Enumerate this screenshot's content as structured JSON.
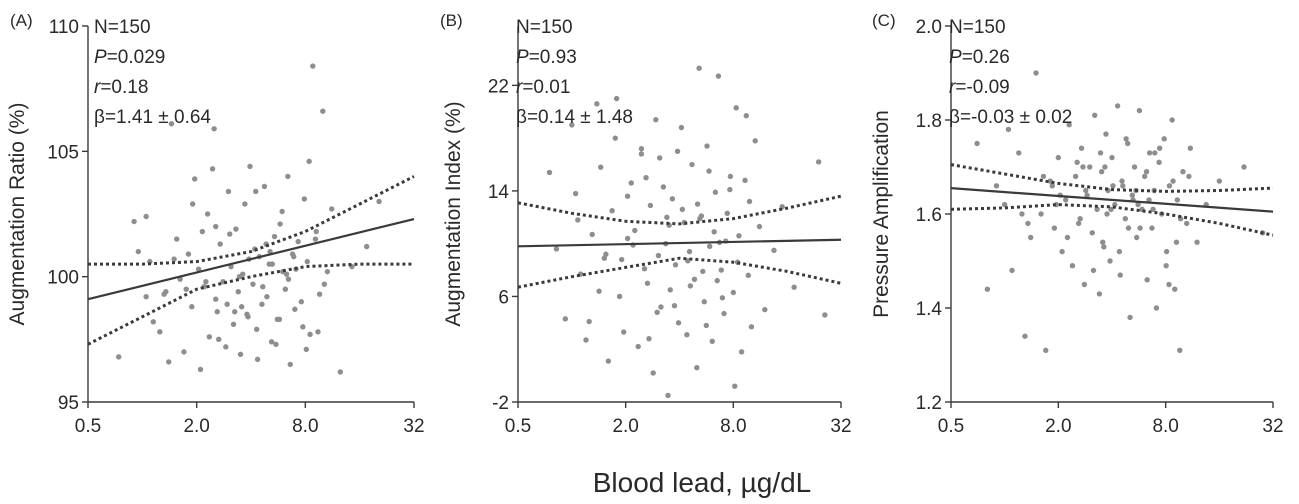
{
  "figure": {
    "shared_xlabel": "Blood lead, µg/dL"
  },
  "chart_data": [
    {
      "type": "scatter",
      "panel": "(A)",
      "ylabel": "Augmentation Ratio (%)",
      "x_scale": "log2",
      "xticks": [
        0.5,
        2.0,
        8.0,
        32
      ],
      "xtick_labels": [
        "0.5",
        "2.0",
        "8.0",
        "32"
      ],
      "xlim": [
        0.5,
        32
      ],
      "yticks": [
        95,
        100,
        105,
        110
      ],
      "ytick_labels": [
        "95",
        "100",
        "105",
        "110"
      ],
      "ylim": [
        95,
        110
      ],
      "stats": [
        {
          "sym": "N",
          "rest": "=150"
        },
        {
          "sym": "P",
          "rest": "=0.029"
        },
        {
          "sym": "r",
          "rest": "=0.18"
        },
        {
          "sym": "β",
          "rest": "=1.41 ± 0.64"
        }
      ],
      "fit": {
        "x": [
          0.5,
          32
        ],
        "y": [
          99.1,
          102.3
        ]
      },
      "ci_upper": {
        "x": [
          0.5,
          1.0,
          2.0,
          4.0,
          8.0,
          16.0,
          32
        ],
        "y": [
          100.5,
          100.5,
          100.6,
          101.0,
          101.8,
          102.9,
          104.0
        ]
      },
      "ci_lower": {
        "x": [
          0.5,
          1.0,
          2.0,
          4.0,
          8.0,
          16.0,
          32
        ],
        "y": [
          97.3,
          98.4,
          99.5,
          100.0,
          100.4,
          100.5,
          100.5
        ]
      },
      "points": {
        "x": [
          0.74,
          0.95,
          1.05,
          1.1,
          1.25,
          1.32,
          1.4,
          1.45,
          1.55,
          1.62,
          1.7,
          1.8,
          1.88,
          1.95,
          2.05,
          2.1,
          2.2,
          2.3,
          2.35,
          2.45,
          2.55,
          2.6,
          2.7,
          2.8,
          2.9,
          3.0,
          3.1,
          3.2,
          3.3,
          3.4,
          3.5,
          3.6,
          3.7,
          3.8,
          3.95,
          4.1,
          4.2,
          4.3,
          4.45,
          4.6,
          4.75,
          4.9,
          5.05,
          5.2,
          5.4,
          5.6,
          5.8,
          6.0,
          6.2,
          6.4,
          6.6,
          6.8,
          7.0,
          7.3,
          7.6,
          7.9,
          8.2,
          8.5,
          8.8,
          9.2,
          9.6,
          10.0,
          10.6,
          11.2,
          12.5,
          14.5,
          17.5,
          20.5,
          1.15,
          1.5,
          1.9,
          2.25,
          2.65,
          3.05,
          3.45,
          3.85,
          4.25,
          4.65,
          5.1,
          5.5,
          5.95,
          6.45,
          7.1,
          7.75,
          8.4,
          9.1,
          10.2,
          2.5,
          3.25,
          4.35,
          6.9,
          1.05,
          2.15,
          3.55,
          5.25,
          8.1,
          0.9,
          1.75,
          2.95,
          4.85,
          6.3,
          9.4,
          1.35,
          2.55,
          3.9,
          5.75
        ],
        "y": [
          96.8,
          101.0,
          102.4,
          100.6,
          97.8,
          99.3,
          96.6,
          106.1,
          101.5,
          99.9,
          97.0,
          100.9,
          98.8,
          103.9,
          100.3,
          96.3,
          99.6,
          102.5,
          97.6,
          104.3,
          99.1,
          98.6,
          101.3,
          99.8,
          97.2,
          103.4,
          100.4,
          98.1,
          101.9,
          99.4,
          96.9,
          100.1,
          102.9,
          98.5,
          104.4,
          99.7,
          101.1,
          97.9,
          100.8,
          98.9,
          103.6,
          99.2,
          100.5,
          97.4,
          101.6,
          98.3,
          102.1,
          100.2,
          99.5,
          104.0,
          96.5,
          100.9,
          98.7,
          101.4,
          99.0,
          103.1,
          100.6,
          97.7,
          108.4,
          101.8,
          99.3,
          106.6,
          100.2,
          102.7,
          96.2,
          100.4,
          101.2,
          103.0,
          98.2,
          100.7,
          102.9,
          99.8,
          97.5,
          101.7,
          100.0,
          98.4,
          103.4,
          99.6,
          101.0,
          97.3,
          102.6,
          99.9,
          100.3,
          98.0,
          104.6,
          101.5,
          99.7,
          105.9,
          98.6,
          96.7,
          100.8,
          99.2,
          101.8,
          98.8,
          100.5,
          97.1,
          102.2,
          99.5,
          98.9,
          101.3,
          100.1,
          97.8,
          99.4,
          102.0,
          100.7,
          98.3
        ]
      }
    },
    {
      "type": "scatter",
      "panel": "(B)",
      "ylabel": "Augmentation Index (%)",
      "x_scale": "log2",
      "xticks": [
        0.5,
        2.0,
        8.0,
        32
      ],
      "xtick_labels": [
        "0.5",
        "2.0",
        "8.0",
        "32"
      ],
      "xlim": [
        0.5,
        32
      ],
      "yticks": [
        -2,
        6,
        14,
        22
      ],
      "ytick_labels": [
        "-2",
        "6",
        "14",
        "22"
      ],
      "ylim": [
        -2,
        26.5
      ],
      "stats": [
        {
          "sym": "N",
          "rest": "=150"
        },
        {
          "sym": "P",
          "rest": "=0.93"
        },
        {
          "sym": "r",
          "rest": "=0.01"
        },
        {
          "sym": "β",
          "rest": "=0.14 ± 1.48"
        }
      ],
      "fit": {
        "x": [
          0.5,
          32
        ],
        "y": [
          9.8,
          10.3
        ]
      },
      "ci_upper": {
        "x": [
          0.5,
          1.0,
          2.0,
          4.0,
          8.0,
          16.0,
          32
        ],
        "y": [
          13.1,
          12.3,
          11.7,
          11.5,
          11.9,
          12.7,
          13.6
        ]
      },
      "ci_lower": {
        "x": [
          0.5,
          1.0,
          2.0,
          4.0,
          8.0,
          16.0,
          32
        ],
        "y": [
          6.7,
          7.5,
          8.2,
          8.9,
          8.6,
          7.9,
          7.0
        ]
      },
      "points": {
        "x": [
          0.75,
          0.82,
          0.92,
          1.0,
          1.05,
          1.12,
          1.2,
          1.3,
          1.38,
          1.45,
          1.52,
          1.6,
          1.68,
          1.75,
          1.85,
          1.95,
          2.05,
          2.15,
          2.25,
          2.35,
          2.45,
          2.55,
          2.65,
          2.75,
          2.85,
          2.95,
          3.05,
          3.15,
          3.25,
          3.35,
          3.45,
          3.55,
          3.65,
          3.8,
          3.95,
          4.1,
          4.25,
          4.4,
          4.55,
          4.7,
          4.85,
          5.0,
          5.15,
          5.3,
          5.5,
          5.7,
          5.9,
          6.1,
          6.35,
          6.6,
          6.85,
          7.1,
          7.4,
          7.7,
          8.0,
          8.3,
          8.6,
          8.9,
          9.3,
          9.7,
          10.1,
          10.6,
          11.2,
          12.0,
          13.5,
          15.0,
          17.5,
          24.0,
          26.0,
          1.08,
          1.42,
          1.78,
          2.2,
          2.6,
          3.0,
          3.4,
          3.9,
          4.45,
          5.05,
          5.65,
          6.25,
          6.95,
          7.65,
          8.45,
          9.45,
          2.05,
          2.7,
          3.5,
          4.6,
          5.85,
          7.25,
          1.25,
          1.9,
          3.1,
          4.15,
          5.4,
          6.7,
          8.15,
          9.85,
          1.55,
          2.45,
          3.75,
          5.2,
          6.5
        ],
        "y": [
          15.4,
          9.6,
          4.3,
          19.0,
          13.8,
          7.7,
          2.7,
          10.7,
          20.6,
          15.8,
          8.9,
          1.1,
          12.5,
          18.0,
          6.0,
          3.3,
          10.4,
          14.6,
          11.0,
          2.2,
          16.8,
          8.1,
          7.0,
          12.9,
          0.2,
          19.4,
          9.1,
          5.2,
          14.3,
          10.0,
          -1.5,
          6.5,
          13.4,
          8.4,
          4.0,
          18.8,
          11.6,
          3.1,
          9.4,
          16.0,
          7.3,
          0.6,
          23.3,
          12.1,
          5.6,
          17.4,
          9.8,
          2.6,
          13.9,
          22.7,
          8.0,
          4.7,
          12.3,
          15.1,
          6.3,
          20.3,
          10.6,
          1.8,
          14.8,
          7.6,
          3.7,
          17.8,
          11.3,
          5.0,
          9.5,
          12.8,
          6.7,
          16.2,
          4.6,
          11.8,
          6.4,
          21.0,
          9.9,
          15.0,
          4.8,
          12.0,
          17.0,
          8.7,
          13.0,
          3.8,
          10.9,
          5.9,
          14.1,
          8.6,
          19.7,
          13.6,
          2.8,
          11.4,
          6.8,
          15.5,
          10.2,
          4.1,
          8.8,
          16.5,
          12.6,
          7.9,
          10.1,
          -0.8,
          13.2,
          9.2,
          17.2,
          5.3,
          11.9,
          7.2
        ]
      }
    },
    {
      "type": "scatter",
      "panel": "(C)",
      "ylabel": "Pressure Amplification",
      "x_scale": "log2",
      "xticks": [
        0.5,
        2.0,
        8.0,
        32
      ],
      "xtick_labels": [
        "0.5",
        "2.0",
        "8.0",
        "32"
      ],
      "xlim": [
        0.5,
        32
      ],
      "yticks": [
        1.2,
        1.4,
        1.6,
        1.8,
        2.0
      ],
      "ytick_labels": [
        "1.2",
        "1.4",
        "1.6",
        "1.8",
        "2.0"
      ],
      "ylim": [
        1.2,
        2.0
      ],
      "stats": [
        {
          "sym": "N",
          "rest": "=150"
        },
        {
          "sym": "P",
          "rest": "=0.26"
        },
        {
          "sym": "r",
          "rest": "=-0.09"
        },
        {
          "sym": "β",
          "rest": "=-0.03 ± 0.02"
        }
      ],
      "fit": {
        "x": [
          0.5,
          32
        ],
        "y": [
          1.655,
          1.605
        ]
      },
      "ci_upper": {
        "x": [
          0.5,
          1.0,
          2.0,
          4.0,
          8.0,
          16.0,
          32
        ],
        "y": [
          1.705,
          1.685,
          1.665,
          1.652,
          1.648,
          1.65,
          1.655
        ]
      },
      "ci_lower": {
        "x": [
          0.5,
          1.0,
          2.0,
          4.0,
          8.0,
          16.0,
          32
        ],
        "y": [
          1.61,
          1.613,
          1.62,
          1.615,
          1.6,
          1.58,
          1.555
        ]
      },
      "points": {
        "x": [
          0.7,
          0.8,
          0.9,
          1.0,
          1.1,
          1.2,
          1.3,
          1.4,
          1.5,
          1.6,
          1.7,
          1.8,
          1.9,
          2.0,
          2.1,
          2.2,
          2.3,
          2.4,
          2.5,
          2.6,
          2.7,
          2.8,
          2.9,
          3.0,
          3.1,
          3.2,
          3.3,
          3.4,
          3.5,
          3.6,
          3.7,
          3.8,
          3.9,
          4.0,
          4.15,
          4.3,
          4.45,
          4.6,
          4.75,
          4.9,
          5.05,
          5.2,
          5.35,
          5.5,
          5.7,
          5.9,
          6.1,
          6.3,
          6.5,
          6.7,
          6.9,
          7.1,
          7.35,
          7.6,
          7.85,
          8.1,
          8.4,
          8.7,
          9.0,
          9.3,
          9.6,
          10.0,
          10.5,
          11.0,
          12.0,
          13.5,
          16.0,
          22.0,
          28.0,
          1.05,
          1.35,
          1.65,
          1.95,
          2.25,
          2.55,
          2.85,
          3.15,
          3.45,
          3.75,
          4.05,
          4.4,
          4.8,
          5.25,
          5.75,
          6.25,
          6.8,
          7.4,
          8.05,
          8.8,
          9.7,
          2.05,
          2.75,
          3.55,
          4.55,
          5.6,
          6.95,
          8.35,
          1.25,
          1.85,
          2.65,
          3.65,
          4.95,
          6.45,
          9.2,
          10.8,
          3.95,
          5.45
        ],
        "y": [
          1.75,
          1.44,
          1.66,
          1.62,
          1.48,
          1.73,
          1.34,
          1.55,
          1.9,
          1.6,
          1.31,
          1.67,
          1.57,
          1.72,
          1.52,
          1.63,
          1.79,
          1.49,
          1.68,
          1.58,
          1.74,
          1.45,
          1.64,
          1.7,
          1.56,
          1.81,
          1.61,
          1.43,
          1.69,
          1.53,
          1.77,
          1.65,
          1.5,
          1.72,
          1.62,
          1.83,
          1.47,
          1.66,
          1.59,
          1.75,
          1.38,
          1.64,
          1.7,
          1.55,
          1.82,
          1.61,
          1.68,
          1.46,
          1.73,
          1.57,
          1.65,
          1.4,
          1.71,
          1.6,
          1.76,
          1.52,
          1.66,
          1.8,
          1.44,
          1.63,
          1.31,
          1.69,
          1.58,
          1.74,
          1.54,
          1.62,
          1.67,
          1.7,
          1.56,
          1.78,
          1.58,
          1.68,
          1.62,
          1.55,
          1.71,
          1.65,
          1.48,
          1.73,
          1.6,
          1.66,
          1.52,
          1.76,
          1.63,
          1.57,
          1.69,
          1.61,
          1.74,
          1.49,
          1.67,
          1.59,
          1.64,
          1.7,
          1.54,
          1.67,
          1.62,
          1.73,
          1.45,
          1.6,
          1.66,
          1.59,
          1.7,
          1.57,
          1.63,
          1.54,
          1.68,
          1.61,
          1.65
        ]
      }
    }
  ]
}
